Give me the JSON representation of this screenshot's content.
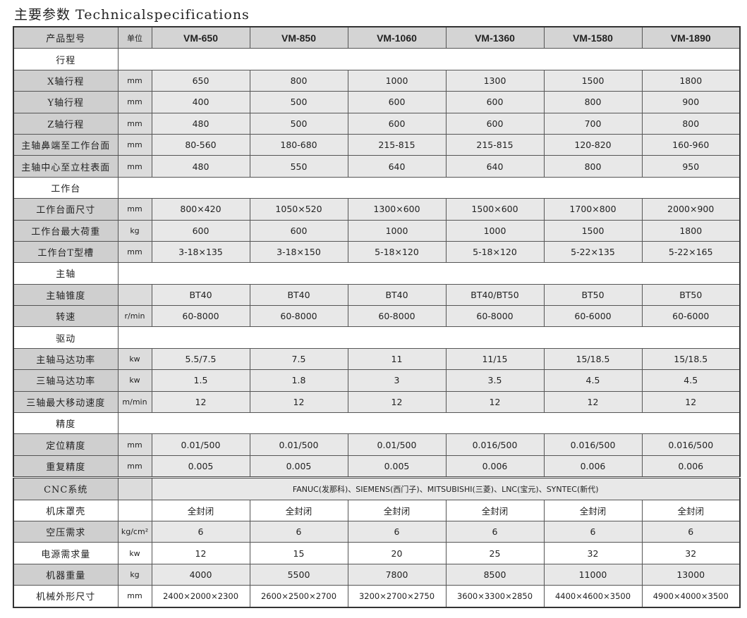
{
  "title": "主要参数 Technicalspecifications",
  "header": {
    "label": "产品型号",
    "unit": "单位",
    "models": [
      "VM-650",
      "VM-850",
      "VM-1060",
      "VM-1360",
      "VM-1580",
      "VM-1890"
    ]
  },
  "rows": [
    {
      "type": "section",
      "label": "行程"
    },
    {
      "type": "data",
      "label": "X轴行程",
      "unit": "mm",
      "values": [
        "650",
        "800",
        "1000",
        "1300",
        "1500",
        "1800"
      ]
    },
    {
      "type": "data",
      "label": "Y轴行程",
      "unit": "mm",
      "values": [
        "400",
        "500",
        "600",
        "600",
        "800",
        "900"
      ]
    },
    {
      "type": "data",
      "label": "Z轴行程",
      "unit": "mm",
      "values": [
        "480",
        "500",
        "600",
        "600",
        "700",
        "800"
      ]
    },
    {
      "type": "data",
      "label": "主轴鼻端至工作台面",
      "unit": "mm",
      "values": [
        "80-560",
        "180-680",
        "215-815",
        "215-815",
        "120-820",
        "160-960"
      ]
    },
    {
      "type": "data",
      "label": "主轴中心至立柱表面",
      "unit": "mm",
      "values": [
        "480",
        "550",
        "640",
        "640",
        "800",
        "950"
      ]
    },
    {
      "type": "section",
      "label": "工作台"
    },
    {
      "type": "data",
      "label": "工作台面尺寸",
      "unit": "mm",
      "values": [
        "800×420",
        "1050×520",
        "1300×600",
        "1500×600",
        "1700×800",
        "2000×900"
      ]
    },
    {
      "type": "data",
      "label": "工作台最大荷重",
      "unit": "kg",
      "values": [
        "600",
        "600",
        "1000",
        "1000",
        "1500",
        "1800"
      ]
    },
    {
      "type": "data",
      "label": "工作台T型槽",
      "unit": "mm",
      "values": [
        "3-18×135",
        "3-18×150",
        "5-18×120",
        "5-18×120",
        "5-22×135",
        "5-22×165"
      ]
    },
    {
      "type": "section",
      "label": "主轴"
    },
    {
      "type": "data",
      "label": "主轴锥度",
      "unit": "",
      "values": [
        "BT40",
        "BT40",
        "BT40",
        "BT40/BT50",
        "BT50",
        "BT50"
      ]
    },
    {
      "type": "data",
      "label": "转速",
      "unit": "r/min",
      "values": [
        "60-8000",
        "60-8000",
        "60-8000",
        "60-8000",
        "60-6000",
        "60-6000"
      ]
    },
    {
      "type": "section",
      "label": "驱动"
    },
    {
      "type": "data",
      "label": "主轴马达功率",
      "unit": "kw",
      "values": [
        "5.5/7.5",
        "7.5",
        "11",
        "11/15",
        "15/18.5",
        "15/18.5"
      ]
    },
    {
      "type": "data",
      "label": "三轴马达功率",
      "unit": "kw",
      "values": [
        "1.5",
        "1.8",
        "3",
        "3.5",
        "4.5",
        "4.5"
      ]
    },
    {
      "type": "data",
      "label": "三轴最大移动速度",
      "unit": "m/min",
      "values": [
        "12",
        "12",
        "12",
        "12",
        "12",
        "12"
      ]
    },
    {
      "type": "section",
      "label": "精度"
    },
    {
      "type": "data",
      "label": "定位精度",
      "unit": "mm",
      "values": [
        "0.01/500",
        "0.01/500",
        "0.01/500",
        "0.016/500",
        "0.016/500",
        "0.016/500"
      ]
    },
    {
      "type": "data",
      "label": "重复精度",
      "unit": "mm",
      "values": [
        "0.005",
        "0.005",
        "0.005",
        "0.006",
        "0.006",
        "0.006"
      ]
    },
    {
      "type": "span",
      "label": "CNC系统",
      "unit": "",
      "value": "FANUC(发那科)、SIEMENS(西门子)、MITSUBISHI(三菱)、LNC(宝元)、SYNTEC(新代)"
    },
    {
      "type": "data",
      "label": "机床罩壳",
      "unit": "",
      "values": [
        "全封闭",
        "全封闭",
        "全封闭",
        "全封闭",
        "全封闭",
        "全封闭"
      ]
    },
    {
      "type": "data",
      "label": "空压需求",
      "unit": "kg/cm²",
      "values": [
        "6",
        "6",
        "6",
        "6",
        "6",
        "6"
      ]
    },
    {
      "type": "data",
      "label": "电源需求量",
      "unit": "kw",
      "values": [
        "12",
        "15",
        "20",
        "25",
        "32",
        "32"
      ]
    },
    {
      "type": "data",
      "label": "机器重量",
      "unit": "kg",
      "values": [
        "4000",
        "5500",
        "7800",
        "8500",
        "11000",
        "13000"
      ]
    },
    {
      "type": "data",
      "label": "机械外形尺寸",
      "unit": "mm",
      "values": [
        "2400×2000×2300",
        "2600×2500×2700",
        "3200×2700×2750",
        "3600×3300×2850",
        "4400×4600×3500",
        "4900×4000×3500"
      ]
    }
  ]
}
